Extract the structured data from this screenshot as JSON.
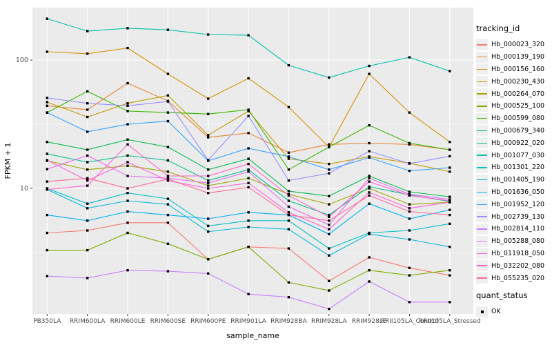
{
  "chart_data": {
    "type": "line",
    "title": "",
    "xlabel": "sample_name",
    "ylabel": "FPKM + 1",
    "y_scale": "log10",
    "y_tick_labels": [
      "100",
      "10"
    ],
    "y_tick_values": [
      100,
      10
    ],
    "y_minor_values": [
      31.62,
      3.162
    ],
    "ylim": [
      1.05,
      256
    ],
    "grid": "white-on-gray",
    "legend_position": "right",
    "panel_bg": "#EBEBEB",
    "grid_color": "#FFFFFF",
    "tick_label_color": "#4D4D4D",
    "marker": "black-square",
    "x_categories": [
      "PB350LA",
      "RRIM600LA",
      "RRIM600LE",
      "RRIM600SE",
      "RRIM600PE",
      "RRIM901LA",
      "RRIM928BA",
      "RRIM928LA",
      "RRIM928LE",
      "RRII105LA_Control",
      "RRII105LA_Stressed"
    ],
    "series": [
      {
        "name": "Hb_000023_320",
        "color": "#F8766D",
        "values": [
          4.5,
          4.7,
          5.4,
          5.4,
          2.8,
          3.5,
          3.4,
          1.9,
          2.9,
          2.4,
          2.1
        ]
      },
      {
        "name": "Hb_000139_190",
        "color": "#EA8331",
        "values": [
          44,
          41,
          66,
          48,
          25,
          27,
          19,
          22,
          22.5,
          22,
          20
        ]
      },
      {
        "name": "Hb_000156_160",
        "color": "#D89000",
        "values": [
          116,
          112,
          124,
          78,
          50,
          72,
          43,
          21,
          78,
          39,
          23
        ]
      },
      {
        "name": "Hb_000230_430",
        "color": "#C09B00",
        "values": [
          47,
          36,
          46,
          53,
          26,
          40,
          17,
          15.5,
          17.7,
          15.7,
          13.5
        ]
      },
      {
        "name": "Hb_000264_070",
        "color": "#A3A500",
        "values": [
          16.4,
          14,
          15,
          13.5,
          10.5,
          12,
          9,
          7.5,
          10,
          7.5,
          7.8
        ]
      },
      {
        "name": "Hb_000525_100",
        "color": "#7CAE00",
        "values": [
          3.3,
          3.3,
          4.5,
          3.7,
          2.8,
          3.5,
          1.85,
          1.6,
          2.3,
          2.1,
          2.3
        ]
      },
      {
        "name": "Hb_000599_080",
        "color": "#39B600",
        "values": [
          39,
          57,
          40,
          39,
          38,
          41,
          14,
          21,
          31,
          22.5,
          20
        ]
      },
      {
        "name": "Hb_000679_340",
        "color": "#00BB4E",
        "values": [
          23,
          20,
          24,
          21,
          14,
          17,
          9.5,
          8.7,
          12.5,
          9.4,
          8.6
        ]
      },
      {
        "name": "Hb_000922_020",
        "color": "#00C087",
        "values": [
          18.6,
          16,
          18,
          16.5,
          11.5,
          14,
          8,
          6.2,
          10.3,
          8.9,
          7.9
        ]
      },
      {
        "name": "Hb_001077_030",
        "color": "#00C1AB",
        "values": [
          210,
          168,
          177,
          172,
          158,
          156,
          91,
          73,
          90,
          105,
          82
        ]
      },
      {
        "name": "Hb_001301_220",
        "color": "#00BFC4",
        "values": [
          10,
          7.6,
          9.2,
          8.3,
          5.1,
          5.6,
          5.6,
          3.4,
          4.5,
          4.7,
          5.3
        ]
      },
      {
        "name": "Hb_001405_190",
        "color": "#00BAE0",
        "values": [
          9.8,
          7.0,
          8.0,
          7.5,
          4.6,
          5.0,
          4.8,
          3.0,
          4.4,
          4.0,
          3.5
        ]
      },
      {
        "name": "Hb_001636_050",
        "color": "#00B0F6",
        "values": [
          6.2,
          5.6,
          6.6,
          6.2,
          5.8,
          6.5,
          6.2,
          4.4,
          7.6,
          5.8,
          6.8
        ]
      },
      {
        "name": "Hb_001952_120",
        "color": "#35A2FF",
        "values": [
          39,
          27.6,
          31.6,
          33.4,
          16.4,
          20.5,
          17.7,
          14,
          17.4,
          13.7,
          14.5
        ]
      },
      {
        "name": "Hb_002739_130",
        "color": "#9590FF",
        "values": [
          50.7,
          46,
          44,
          47.5,
          16.6,
          36.7,
          11.5,
          13.1,
          19.5,
          15.6,
          17.8
        ]
      },
      {
        "name": "Hb_002814_110",
        "color": "#C77CFF",
        "values": [
          2.07,
          2.0,
          2.3,
          2.26,
          2.17,
          1.5,
          1.42,
          1.15,
          1.88,
          1.3,
          1.3
        ]
      },
      {
        "name": "Hb_005288_080",
        "color": "#E76BF3",
        "values": [
          14.1,
          18,
          12.5,
          12,
          11,
          13.5,
          7.2,
          5.2,
          12,
          9,
          8.2
        ]
      },
      {
        "name": "Hb_011918_050",
        "color": "#FA62DB",
        "values": [
          16.6,
          11.5,
          16,
          11.5,
          10,
          11,
          6.5,
          4.8,
          9.3,
          7.0,
          7.8
        ]
      },
      {
        "name": "Hb_032202_080",
        "color": "#FF61CC",
        "values": [
          9.8,
          10.5,
          22,
          12.5,
          12.5,
          15.5,
          8.8,
          6.0,
          11.3,
          8.8,
          8.0
        ]
      },
      {
        "name": "Hb_055235_020",
        "color": "#FF6A98",
        "values": [
          11.3,
          12,
          10,
          11.8,
          9.2,
          10.2,
          6.2,
          5.6,
          8.8,
          6.6,
          6.2
        ]
      }
    ],
    "legend": {
      "color_title": "tracking_id",
      "shape_title": "quant_status",
      "shape_items": [
        {
          "label": "OK",
          "marker": "black-square"
        }
      ]
    }
  }
}
